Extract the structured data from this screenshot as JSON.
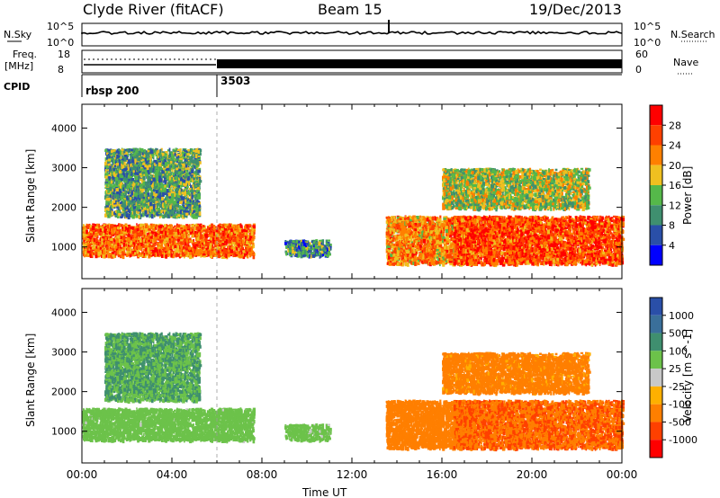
{
  "header": {
    "station": "Clyde River (fitACF)",
    "beam": "Beam 15",
    "date": "19/Dec/2013"
  },
  "noise_panel": {
    "left_label": "N.Sky",
    "right_label": "N.Search",
    "left_ticks": [
      "10^5",
      "10^0"
    ],
    "right_ticks": [
      "10^5",
      "10^0"
    ]
  },
  "freq_panel": {
    "left_label_top": "Freq.",
    "left_label_bottom": "[MHz]",
    "right_label": "Nave",
    "left_ticks": [
      "18",
      "8"
    ],
    "right_ticks": [
      "60",
      "0"
    ]
  },
  "cpid_panel": {
    "label": "CPID",
    "segments": [
      {
        "name": "rbsp 200",
        "start_hour": 0
      },
      {
        "name": "3503",
        "start_hour": 6
      }
    ]
  },
  "x_axis": {
    "label": "Time UT",
    "ticks": [
      "00:00",
      "04:00",
      "08:00",
      "12:00",
      "16:00",
      "20:00",
      "00:00"
    ],
    "hours": [
      0,
      4,
      8,
      12,
      16,
      20,
      24
    ]
  },
  "y_axis": {
    "label": "Slant Range [km]",
    "ticks": [
      "1000",
      "2000",
      "3000",
      "4000"
    ],
    "values": [
      1000,
      2000,
      3000,
      4000
    ],
    "range": [
      200,
      4600
    ]
  },
  "power_colorbar": {
    "label": "Power [dB]",
    "ticks": [
      "4",
      "8",
      "12",
      "16",
      "20",
      "24",
      "28"
    ],
    "colors": [
      "#0000ff",
      "#2a4fa8",
      "#3f8f6f",
      "#55b84a",
      "#f0c020",
      "#ff8000",
      "#ff4000",
      "#ff0000"
    ]
  },
  "velocity_colorbar": {
    "label": "Velocity [m s^-1]",
    "ticks": [
      "1000",
      "500",
      "100",
      "25",
      "-25",
      "-100",
      "-500",
      "-1000"
    ],
    "colors": [
      "#2a4fa8",
      "#3a6f9a",
      "#3f8f6f",
      "#6cc24a",
      "#c8c8c8",
      "#ffb000",
      "#ff7f00",
      "#ff4000",
      "#ff0000"
    ]
  },
  "chart_data": {
    "type": "heatmap",
    "title": "Clyde River (fitACF)",
    "xlabel": "Time UT",
    "ylabel": "Slant Range [km]",
    "xlim": [
      0,
      24
    ],
    "ylim": [
      200,
      4600
    ],
    "panels": [
      "Power [dB]",
      "Velocity [m s^-1]"
    ],
    "scatter_regions": [
      {
        "start_hour": 0.0,
        "end_hour": 7.6,
        "range_low_km": 800,
        "range_high_km": 1600,
        "power_db": 24,
        "velocity_ms": 60
      },
      {
        "start_hour": 1.0,
        "end_hour": 5.2,
        "range_low_km": 1800,
        "range_high_km": 3500,
        "power_db": 12,
        "velocity_ms": 100
      },
      {
        "start_hour": 9.0,
        "end_hour": 11.0,
        "range_low_km": 800,
        "range_high_km": 1200,
        "power_db": 10,
        "velocity_ms": 50
      },
      {
        "start_hour": 13.5,
        "end_hour": 17.5,
        "range_low_km": 600,
        "range_high_km": 1800,
        "power_db": 22,
        "velocity_ms": -300
      },
      {
        "start_hour": 16.5,
        "end_hour": 24.0,
        "range_low_km": 600,
        "range_high_km": 1800,
        "power_db": 26,
        "velocity_ms": -450
      },
      {
        "start_hour": 16.0,
        "end_hour": 22.5,
        "range_low_km": 2000,
        "range_high_km": 3000,
        "power_db": 16,
        "velocity_ms": -200
      }
    ],
    "noise_sky_level": "~10^3",
    "freq_mhz": 11,
    "nave_max": 60
  }
}
